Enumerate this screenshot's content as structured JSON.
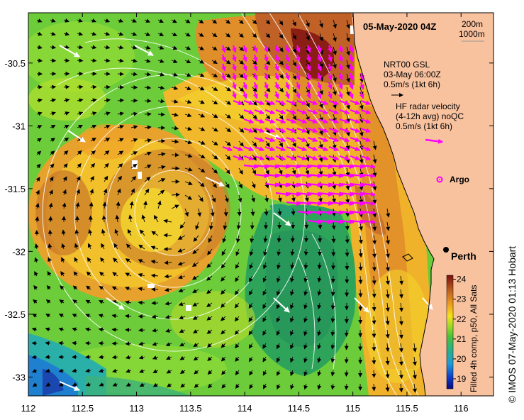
{
  "title": "05-May-2020 04Z",
  "depth_legend": [
    "200m",
    "1000m"
  ],
  "gsl_block": [
    "NRT00 GSL",
    "03-May 06:00Z",
    "0.5m/s (1kt 6h)"
  ],
  "hf_block": [
    "HF radar velocity",
    "(4-12h avg) noQC",
    "0.5m/s (1kt 6h)"
  ],
  "argo_label": "Argo",
  "city_label": "Perth",
  "colorbar_title": "Filled 4h comp, p50, All Sats",
  "credit": "© IMOS 07-May-2020 01:13 Hobart",
  "colors": {
    "land": "#f9c29f",
    "hf_vector": "#ff00ff",
    "gsl_vector": "#000000",
    "contour": "#ffffff",
    "city": "#000000"
  },
  "chart_data": {
    "type": "heatmap",
    "variable": "sea surface temperature",
    "x_ticks": [
      "112",
      "112.5",
      "113",
      "113.5",
      "114",
      "114.5",
      "115",
      "115.5",
      "116"
    ],
    "y_ticks": [
      "-30.5",
      "-31",
      "-31.5",
      "-32",
      "-32.5",
      "-33"
    ],
    "xlim": [
      112,
      116.3
    ],
    "ylim": [
      -33.15,
      -30.1
    ],
    "colorbar_ticks": [
      "24",
      "23",
      "22",
      "21",
      "20",
      "19"
    ],
    "colorbar_range": [
      18.5,
      24.2
    ],
    "grid": false,
    "markers": [
      {
        "name": "Perth",
        "lon": 115.86,
        "lat": -31.95
      },
      {
        "name": "Argo",
        "lon": 115.78,
        "lat": -31.46
      }
    ]
  }
}
